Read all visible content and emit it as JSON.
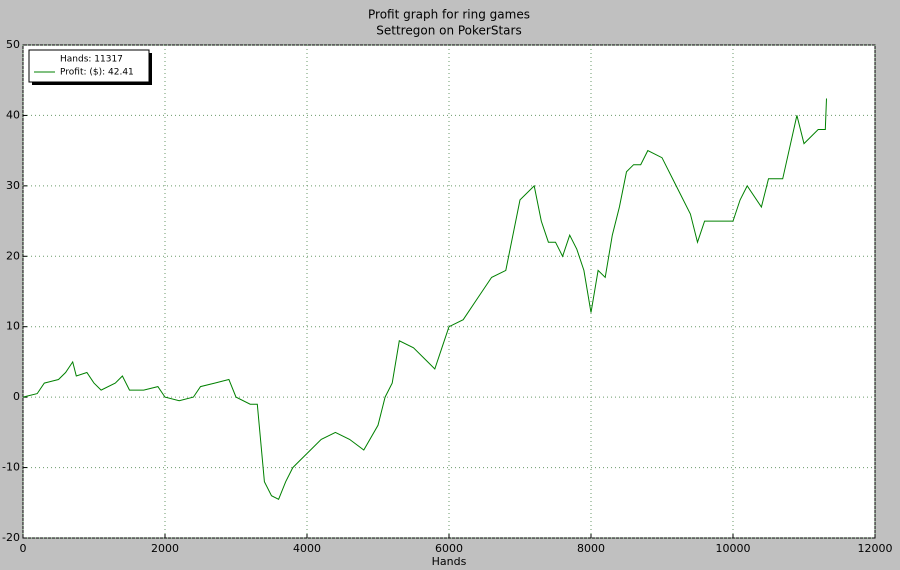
{
  "chart_data": {
    "type": "line",
    "title": "Profit graph for ring games",
    "subtitle": "Settregon on PokerStars",
    "x_label": "Hands",
    "legend_title": "Hands: 11317",
    "legend": "upper left",
    "grid": true,
    "x": [
      0,
      200,
      300,
      500,
      600,
      700,
      750,
      900,
      1000,
      1100,
      1300,
      1400,
      1500,
      1700,
      1900,
      2000,
      2200,
      2400,
      2500,
      2700,
      2900,
      3000,
      3200,
      3300,
      3400,
      3500,
      3600,
      3700,
      3800,
      3900,
      4000,
      4200,
      4400,
      4600,
      4800,
      5000,
      5100,
      5200,
      5300,
      5500,
      5700,
      5800,
      5900,
      6000,
      6200,
      6400,
      6600,
      6800,
      7000,
      7200,
      7300,
      7400,
      7500,
      7600,
      7700,
      7800,
      7900,
      8000,
      8100,
      8200,
      8300,
      8400,
      8500,
      8600,
      8700,
      8800,
      9000,
      9200,
      9400,
      9500,
      9600,
      9800,
      10000,
      10100,
      10200,
      10400,
      10500,
      10700,
      10900,
      11000,
      11200,
      11300,
      11317
    ],
    "series": [
      {
        "name": "Profit: ($): 42.41",
        "color": "#008000",
        "values": [
          0,
          0.5,
          2,
          2.5,
          3.5,
          5,
          3,
          3.5,
          2,
          1,
          2,
          3,
          1,
          1,
          1.5,
          0,
          -0.5,
          0,
          1.5,
          2,
          2.5,
          0,
          -1,
          -1,
          -12,
          -14,
          -14.5,
          -12,
          -10,
          -9,
          -8,
          -6,
          -5,
          -6,
          -7.5,
          -4,
          0,
          2,
          8,
          7,
          5,
          4,
          7,
          10,
          11,
          14,
          17,
          18,
          28,
          30,
          25,
          22,
          22,
          20,
          23,
          21,
          18,
          12,
          18,
          17,
          23,
          27,
          32,
          33,
          33,
          35,
          34,
          30,
          26,
          22,
          25,
          25,
          25,
          28,
          30,
          27,
          31,
          31,
          40,
          36,
          38,
          38,
          42.41
        ]
      }
    ],
    "xlim": [
      0,
      12000
    ],
    "xticks": [
      0,
      2000,
      4000,
      6000,
      8000,
      10000,
      12000
    ],
    "ylim": [
      -20,
      50
    ],
    "yticks": [
      -20,
      -10,
      0,
      10,
      20,
      30,
      40,
      50
    ]
  }
}
